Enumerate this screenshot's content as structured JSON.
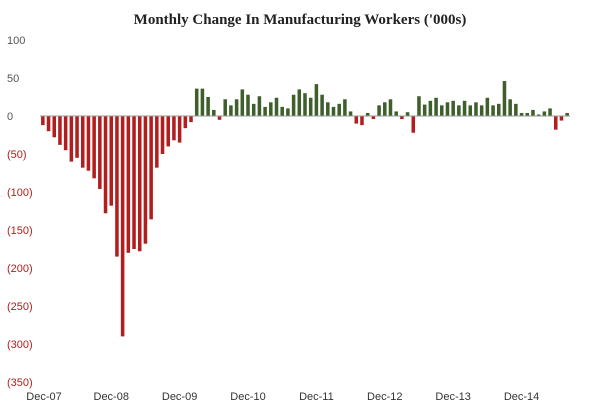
{
  "chart_data": {
    "type": "bar",
    "title": "Monthly Change In Manufacturing Workers ('000s)",
    "xlabel": "",
    "ylabel": "",
    "ylim": [
      -350,
      100
    ],
    "yticks": [
      100,
      50,
      0,
      -50,
      -100,
      -150,
      -200,
      -250,
      -300,
      -350
    ],
    "ytick_labels": [
      "100",
      "50",
      "0",
      "(50)",
      "(100)",
      "(150)",
      "(200)",
      "(250)",
      "(300)",
      "(350)"
    ],
    "xtick_labels": [
      {
        "label": "Dec-07",
        "index": 0
      },
      {
        "label": "Dec-08",
        "index": 12
      },
      {
        "label": "Dec-09",
        "index": 24
      },
      {
        "label": "Dec-10",
        "index": 36
      },
      {
        "label": "Dec-11",
        "index": 48
      },
      {
        "label": "Dec-12",
        "index": 60
      },
      {
        "label": "Dec-13",
        "index": 72
      },
      {
        "label": "Dec-14",
        "index": 84
      }
    ],
    "grid": false,
    "colors": {
      "positive": "#3e5f2c",
      "negative": "#b21e1e",
      "axis": "#999999"
    },
    "values": [
      -12,
      -20,
      -28,
      -38,
      -45,
      -60,
      -55,
      -68,
      -72,
      -82,
      -96,
      -128,
      -118,
      -185,
      -290,
      -180,
      -175,
      -178,
      -168,
      -136,
      -68,
      -50,
      -40,
      -32,
      -35,
      -16,
      -8,
      36,
      36,
      25,
      8,
      -5,
      22,
      14,
      22,
      35,
      28,
      16,
      26,
      12,
      18,
      24,
      12,
      10,
      28,
      35,
      30,
      24,
      42,
      28,
      18,
      12,
      16,
      22,
      6,
      -10,
      -12,
      4,
      -4,
      14,
      18,
      22,
      6,
      -4,
      5,
      -22,
      26,
      15,
      20,
      24,
      14,
      18,
      20,
      14,
      20,
      14,
      18,
      14,
      24,
      14,
      16,
      46,
      22,
      16,
      4,
      4,
      8,
      2,
      6,
      10,
      -18,
      -6,
      4
    ]
  }
}
